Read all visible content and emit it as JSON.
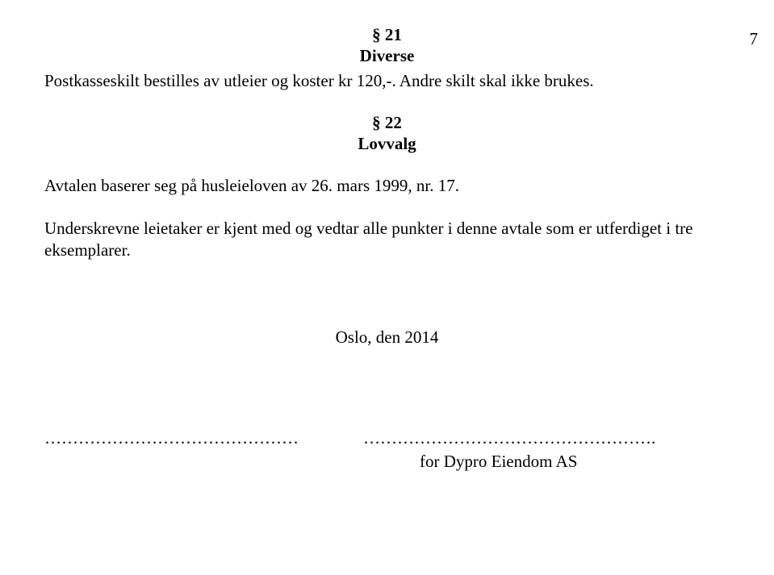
{
  "page_number": "7",
  "section21": {
    "number": "§ 21",
    "title": "Diverse",
    "paragraph": "Postkasseskilt bestilles av utleier og koster kr 120,-. Andre skilt skal ikke brukes."
  },
  "section22": {
    "number": "§ 22",
    "title": "Lovvalg",
    "paragraph1": "Avtalen baserer seg på husleieloven av 26. mars 1999, nr. 17.",
    "paragraph2": "Underskrevne leietaker er kjent med og vedtar alle punkter i denne avtale som er utferdiget i tre eksemplarer."
  },
  "date_line": "Oslo, den 2014",
  "signature": {
    "dots_left": "………………………………………",
    "dots_right": "…………………………………………….",
    "right_label": "for Dypro Eiendom AS"
  }
}
